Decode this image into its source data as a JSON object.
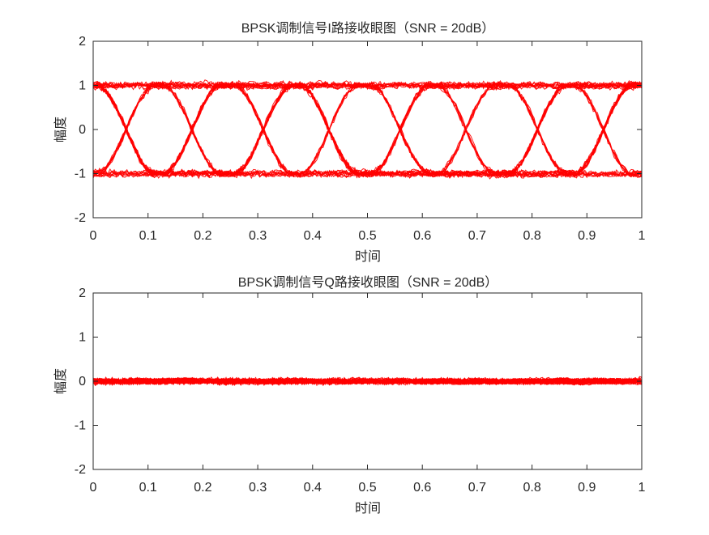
{
  "figure": {
    "background": "#ffffff"
  },
  "chart_data": [
    {
      "type": "line",
      "subtype": "eye-diagram",
      "title": "BPSK调制信号I路接收眼图（SNR = 20dB）",
      "xlabel": "时间",
      "ylabel": "幅度",
      "xlim": [
        0,
        1
      ],
      "ylim": [
        -2,
        2
      ],
      "xticks": [
        "0",
        "0.1",
        "0.2",
        "0.3",
        "0.4",
        "0.5",
        "0.6",
        "0.7",
        "0.8",
        "0.9",
        "1"
      ],
      "yticks": [
        "-2",
        "-1",
        "0",
        "1",
        "2"
      ],
      "line_color": "#ff0000",
      "grid": false,
      "symbol_levels": [
        -1,
        1
      ],
      "transition_centers": [
        0.06,
        0.18,
        0.31,
        0.43,
        0.56,
        0.68,
        0.81,
        0.93
      ],
      "noise_peak": 0.12,
      "traces": 40
    },
    {
      "type": "line",
      "subtype": "eye-diagram",
      "title": "BPSK调制信号Q路接收眼图（SNR = 20dB）",
      "xlabel": "时间",
      "ylabel": "幅度",
      "xlim": [
        0,
        1
      ],
      "ylim": [
        -2,
        2
      ],
      "xticks": [
        "0",
        "0.1",
        "0.2",
        "0.3",
        "0.4",
        "0.5",
        "0.6",
        "0.7",
        "0.8",
        "0.9",
        "1"
      ],
      "yticks": [
        "-2",
        "-1",
        "0",
        "1",
        "2"
      ],
      "line_color": "#ff0000",
      "grid": false,
      "center_level": 0,
      "noise_peak": 0.1,
      "traces": 40
    }
  ]
}
